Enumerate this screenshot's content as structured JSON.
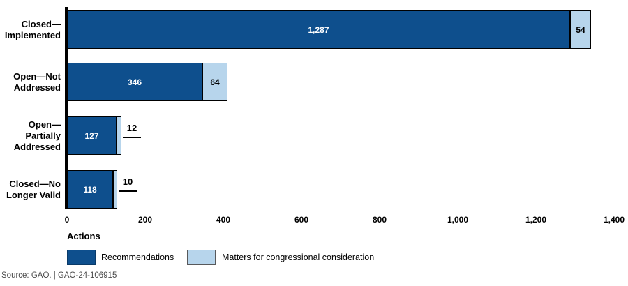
{
  "chart_data": {
    "type": "bar",
    "orientation": "horizontal",
    "stacked": true,
    "title": "",
    "xlabel": "Actions",
    "ylabel": "",
    "xlim": [
      0,
      1400
    ],
    "xticks": [
      {
        "value": 0,
        "label": "0"
      },
      {
        "value": 200,
        "label": "200"
      },
      {
        "value": 400,
        "label": "400"
      },
      {
        "value": 600,
        "label": "600"
      },
      {
        "value": 800,
        "label": "800"
      },
      {
        "value": 1000,
        "label": "1,000"
      },
      {
        "value": 1200,
        "label": "1,200"
      },
      {
        "value": 1400,
        "label": "1,400"
      }
    ],
    "grid": false,
    "legend_position": "bottom",
    "categories": [
      {
        "label": "Closed—Implemented",
        "lines": [
          "Closed—",
          "Implemented"
        ]
      },
      {
        "label": "Open—Not Addressed",
        "lines": [
          "Open—Not",
          "Addressed"
        ]
      },
      {
        "label": "Open—Partially Addressed",
        "lines": [
          "Open—",
          "Partially",
          "Addressed"
        ]
      },
      {
        "label": "Closed—No Longer Valid",
        "lines": [
          "Closed—No",
          "Longer Valid"
        ]
      }
    ],
    "series": [
      {
        "name": "Recommendations",
        "color": "#0E4F8D",
        "label_color": "#ffffff",
        "values": [
          1287,
          346,
          127,
          118
        ],
        "value_labels": [
          "1,287",
          "346",
          "127",
          "118"
        ]
      },
      {
        "name": "Matters for congressional consideration",
        "color": "#B7D5EC",
        "label_color": "#000000",
        "values": [
          54,
          64,
          12,
          10
        ],
        "value_labels": [
          "54",
          "64",
          "12",
          "10"
        ]
      }
    ],
    "source": "Source: GAO.  |  GAO-24-106915"
  }
}
